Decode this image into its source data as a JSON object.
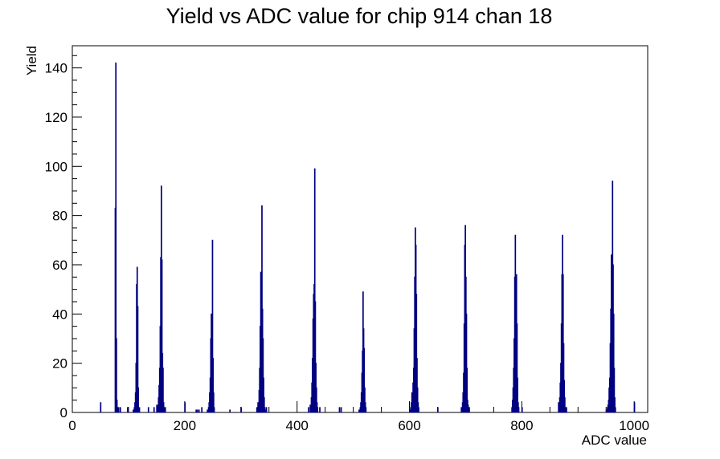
{
  "chart_data": {
    "type": "histogram",
    "title": "Yield vs ADC value for chip 914 chan 18",
    "xlabel": "ADC value",
    "ylabel": "Yield",
    "xlim": [
      0,
      1024
    ],
    "ylim": [
      0,
      149
    ],
    "x_ticks": [
      0,
      200,
      400,
      600,
      800,
      1000
    ],
    "y_ticks": [
      0,
      20,
      40,
      60,
      80,
      100,
      120,
      140
    ],
    "grid": false,
    "color": "#000080",
    "series": [
      {
        "bin_width": 1,
        "x": [
          50,
          76,
          77,
          78,
          79,
          80,
          82,
          85,
          98,
          108,
          110,
          111,
          112,
          113,
          114,
          115,
          116,
          117,
          119,
          135,
          145,
          150,
          152,
          153,
          154,
          155,
          156,
          157,
          158,
          159,
          160,
          161,
          162,
          163,
          165,
          200,
          220,
          222,
          225,
          230,
          240,
          242,
          243,
          244,
          245,
          246,
          247,
          248,
          249,
          250,
          251,
          252,
          280,
          300,
          328,
          330,
          332,
          333,
          334,
          335,
          336,
          337,
          338,
          339,
          340,
          341,
          342,
          343,
          345,
          420,
          423,
          425,
          426,
          427,
          428,
          429,
          430,
          431,
          432,
          433,
          434,
          435,
          436,
          440,
          475,
          478,
          510,
          512,
          513,
          514,
          515,
          516,
          517,
          518,
          519,
          520,
          521,
          522,
          600,
          602,
          603,
          604,
          605,
          606,
          607,
          608,
          609,
          610,
          611,
          612,
          613,
          614,
          615,
          616,
          650,
          692,
          694,
          695,
          696,
          697,
          698,
          699,
          700,
          701,
          702,
          703,
          704,
          705,
          706,
          782,
          783,
          784,
          785,
          786,
          787,
          788,
          789,
          790,
          791,
          792,
          793,
          794,
          800,
          865,
          866,
          867,
          868,
          869,
          870,
          871,
          872,
          873,
          874,
          875,
          876,
          877,
          879,
          950,
          952,
          953,
          954,
          955,
          956,
          957,
          958,
          959,
          960,
          961,
          962,
          963,
          964,
          965,
          966,
          1000
        ],
        "y": [
          4,
          83,
          142,
          30,
          5,
          2,
          2,
          2,
          2,
          1,
          2,
          4,
          8,
          20,
          52,
          59,
          43,
          10,
          2,
          2,
          2,
          3,
          3,
          6,
          11,
          18,
          35,
          63,
          92,
          62,
          24,
          18,
          4,
          2,
          2,
          4,
          1,
          1,
          1,
          2,
          1,
          2,
          4,
          8,
          14,
          30,
          40,
          36,
          70,
          22,
          8,
          2,
          1,
          2,
          2,
          4,
          9,
          18,
          35,
          57,
          57,
          84,
          42,
          30,
          14,
          6,
          2,
          1,
          2,
          2,
          3,
          6,
          12,
          22,
          38,
          48,
          52,
          99,
          45,
          20,
          10,
          4,
          2,
          2,
          2,
          2,
          1,
          2,
          4,
          8,
          16,
          25,
          49,
          34,
          26,
          10,
          4,
          2,
          2,
          1,
          4,
          8,
          8,
          12,
          18,
          34,
          55,
          75,
          68,
          48,
          22,
          10,
          4,
          2,
          2,
          2,
          4,
          8,
          16,
          36,
          68,
          76,
          55,
          40,
          18,
          5,
          3,
          2,
          2,
          2,
          5,
          10,
          18,
          30,
          55,
          72,
          54,
          56,
          36,
          14,
          4,
          2,
          2,
          4,
          2,
          6,
          12,
          20,
          36,
          56,
          72,
          56,
          28,
          13,
          6,
          2,
          2,
          1,
          2,
          3,
          5,
          10,
          14,
          28,
          42,
          64,
          56,
          94,
          60,
          40,
          18,
          6,
          2,
          4
        ]
      }
    ]
  }
}
